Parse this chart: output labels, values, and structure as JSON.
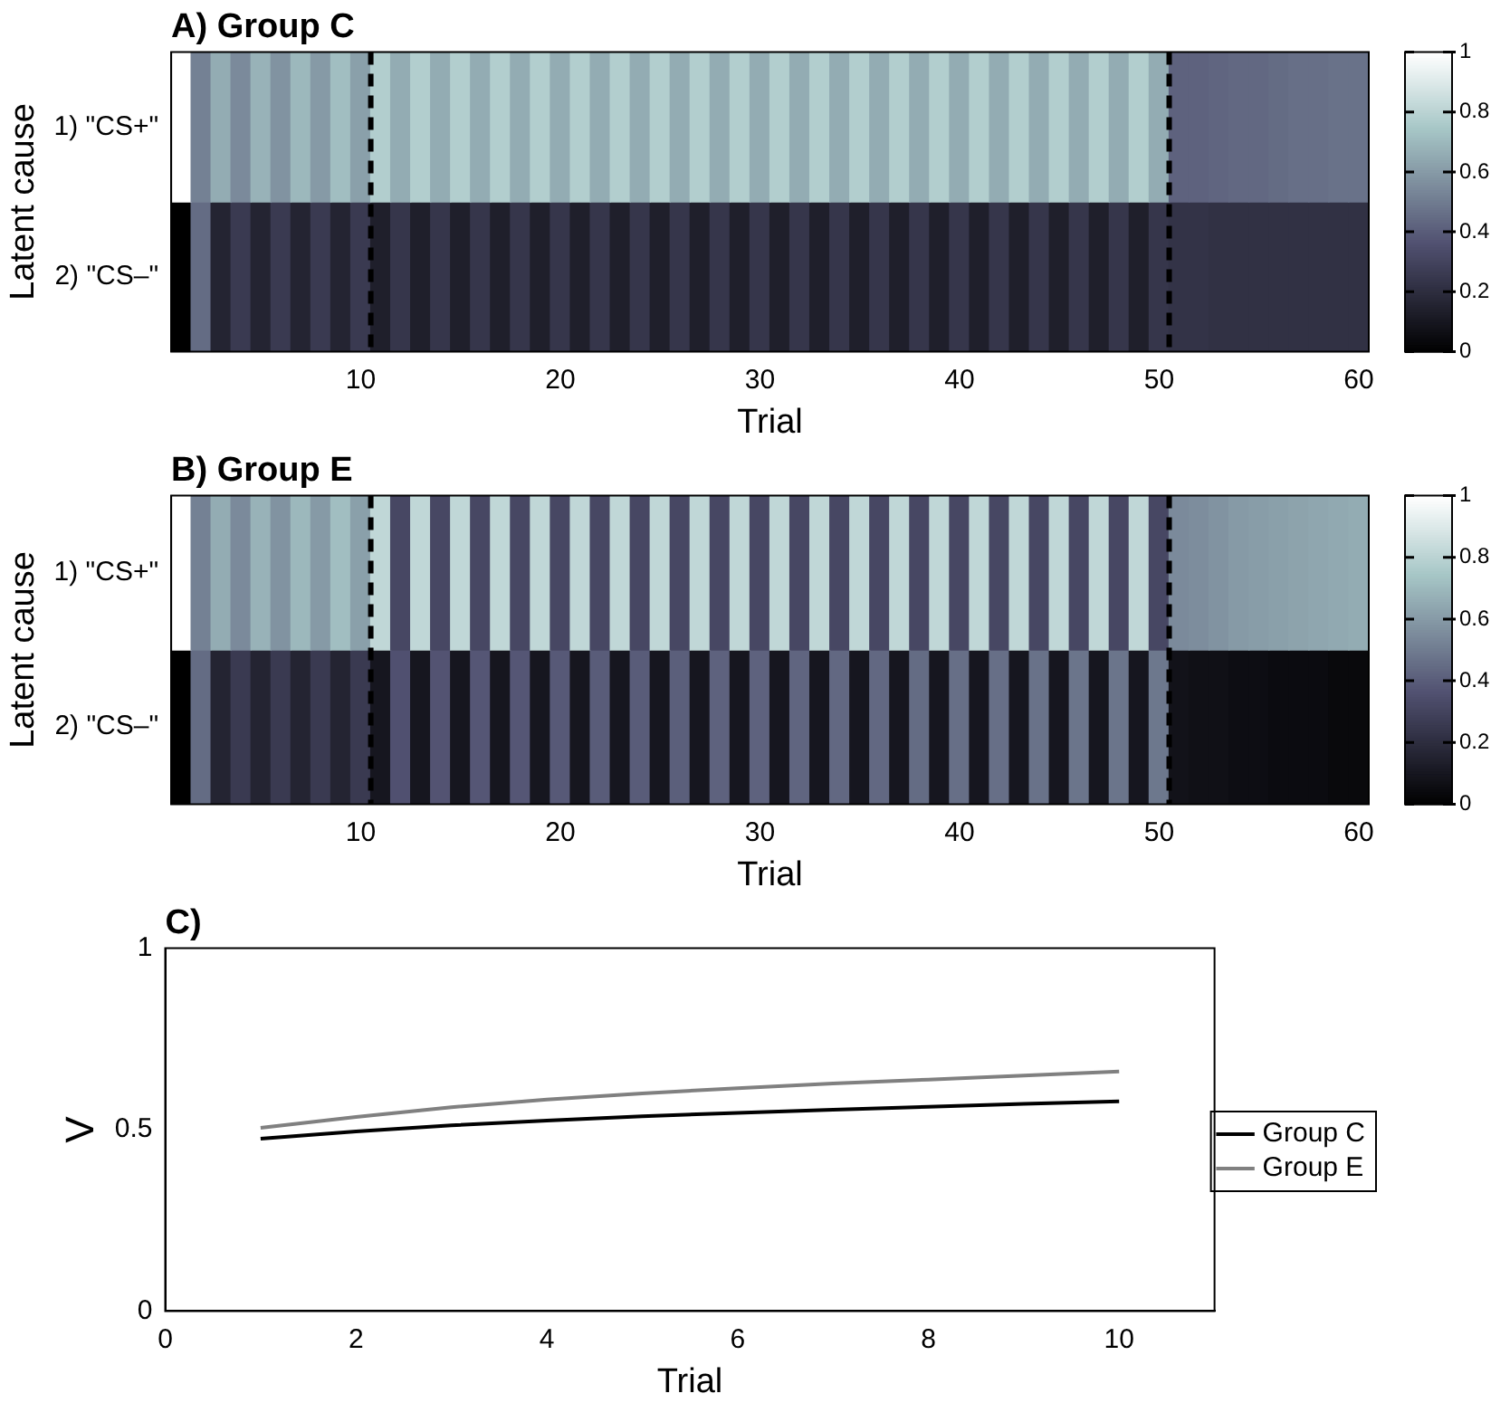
{
  "chart_data": [
    {
      "type": "heatmap",
      "title": "A) Group C",
      "xlabel": "Trial",
      "ylabel": "Latent cause",
      "x": [
        1,
        2,
        3,
        4,
        5,
        6,
        7,
        8,
        9,
        10,
        11,
        12,
        13,
        14,
        15,
        16,
        17,
        18,
        19,
        20,
        21,
        22,
        23,
        24,
        25,
        26,
        27,
        28,
        29,
        30,
        31,
        32,
        33,
        34,
        35,
        36,
        37,
        38,
        39,
        40,
        41,
        42,
        43,
        44,
        45,
        46,
        47,
        48,
        49,
        50,
        51,
        52,
        53,
        54,
        55,
        56,
        57,
        58,
        59,
        60
      ],
      "xlim": [
        0.5,
        60.5
      ],
      "xticks": [
        10,
        20,
        30,
        40,
        50,
        60
      ],
      "y_categories": [
        "1) \"CS+\"",
        "2) \"CS–\""
      ],
      "cells": [
        [
          1,
          0.52,
          0.66,
          0.55,
          0.68,
          0.58,
          0.7,
          0.6,
          0.72,
          0.62,
          0.78,
          0.66,
          0.78,
          0.66,
          0.78,
          0.66,
          0.78,
          0.66,
          0.78,
          0.66,
          0.78,
          0.66,
          0.78,
          0.66,
          0.78,
          0.66,
          0.78,
          0.66,
          0.78,
          0.66,
          0.78,
          0.66,
          0.78,
          0.66,
          0.78,
          0.66,
          0.78,
          0.66,
          0.78,
          0.66,
          0.78,
          0.66,
          0.78,
          0.66,
          0.78,
          0.66,
          0.78,
          0.66,
          0.78,
          0.66,
          0.42,
          0.42,
          0.43,
          0.44,
          0.44,
          0.45,
          0.46,
          0.46,
          0.47,
          0.47
        ],
        [
          0,
          0.45,
          0.16,
          0.26,
          0.16,
          0.26,
          0.16,
          0.26,
          0.16,
          0.26,
          0.14,
          0.24,
          0.14,
          0.24,
          0.14,
          0.24,
          0.14,
          0.24,
          0.14,
          0.24,
          0.14,
          0.24,
          0.14,
          0.24,
          0.14,
          0.24,
          0.14,
          0.24,
          0.14,
          0.24,
          0.14,
          0.24,
          0.14,
          0.24,
          0.14,
          0.24,
          0.14,
          0.24,
          0.14,
          0.24,
          0.14,
          0.24,
          0.14,
          0.24,
          0.14,
          0.24,
          0.14,
          0.24,
          0.14,
          0.24,
          0.23,
          0.23,
          0.22,
          0.22,
          0.22,
          0.22,
          0.22,
          0.22,
          0.22,
          0.22
        ]
      ],
      "clim": [
        0,
        1
      ],
      "cticks": [
        0,
        0.2,
        0.4,
        0.6,
        0.8,
        1
      ],
      "ref_lines": [
        {
          "axis": "x",
          "value": 10.5,
          "color": "#000000",
          "line_style": "dashed"
        },
        {
          "axis": "x",
          "value": 50.5,
          "color": "#000000",
          "line_style": "dashed"
        }
      ]
    },
    {
      "type": "heatmap",
      "title": "B) Group E",
      "xlabel": "Trial",
      "ylabel": "Latent cause",
      "x": [
        1,
        2,
        3,
        4,
        5,
        6,
        7,
        8,
        9,
        10,
        11,
        12,
        13,
        14,
        15,
        16,
        17,
        18,
        19,
        20,
        21,
        22,
        23,
        24,
        25,
        26,
        27,
        28,
        29,
        30,
        31,
        32,
        33,
        34,
        35,
        36,
        37,
        38,
        39,
        40,
        41,
        42,
        43,
        44,
        45,
        46,
        47,
        48,
        49,
        50,
        51,
        52,
        53,
        54,
        55,
        56,
        57,
        58,
        59,
        60
      ],
      "xlim": [
        0.5,
        60.5
      ],
      "xticks": [
        10,
        20,
        30,
        40,
        50,
        60
      ],
      "y_categories": [
        "1) \"CS+\"",
        "2) \"CS–\""
      ],
      "cells": [
        [
          1,
          0.52,
          0.66,
          0.55,
          0.68,
          0.58,
          0.7,
          0.6,
          0.72,
          0.62,
          0.82,
          0.32,
          0.82,
          0.32,
          0.82,
          0.32,
          0.82,
          0.32,
          0.82,
          0.32,
          0.82,
          0.32,
          0.82,
          0.32,
          0.82,
          0.32,
          0.82,
          0.32,
          0.82,
          0.32,
          0.82,
          0.32,
          0.82,
          0.32,
          0.82,
          0.32,
          0.82,
          0.32,
          0.82,
          0.32,
          0.82,
          0.32,
          0.82,
          0.32,
          0.82,
          0.32,
          0.82,
          0.32,
          0.82,
          0.32,
          0.55,
          0.56,
          0.58,
          0.6,
          0.61,
          0.62,
          0.63,
          0.64,
          0.65,
          0.66
        ],
        [
          0,
          0.45,
          0.16,
          0.26,
          0.16,
          0.26,
          0.16,
          0.26,
          0.16,
          0.26,
          0.1,
          0.36,
          0.1,
          0.37,
          0.1,
          0.38,
          0.1,
          0.38,
          0.1,
          0.39,
          0.1,
          0.4,
          0.1,
          0.4,
          0.1,
          0.41,
          0.1,
          0.42,
          0.1,
          0.42,
          0.1,
          0.43,
          0.1,
          0.44,
          0.1,
          0.44,
          0.1,
          0.45,
          0.1,
          0.46,
          0.1,
          0.46,
          0.1,
          0.47,
          0.1,
          0.48,
          0.1,
          0.48,
          0.1,
          0.49,
          0.08,
          0.07,
          0.07,
          0.06,
          0.06,
          0.05,
          0.05,
          0.05,
          0.04,
          0.04
        ]
      ],
      "clim": [
        0,
        1
      ],
      "cticks": [
        0,
        0.2,
        0.4,
        0.6,
        0.8,
        1
      ],
      "ref_lines": [
        {
          "axis": "x",
          "value": 10.5,
          "color": "#000000",
          "line_style": "dashed"
        },
        {
          "axis": "x",
          "value": 50.5,
          "color": "#000000",
          "line_style": "dashed"
        }
      ]
    },
    {
      "type": "line",
      "title": "C)",
      "xlabel": "Trial",
      "ylabel": "V",
      "x": [
        1,
        2,
        3,
        4,
        5,
        6,
        7,
        8,
        9,
        10
      ],
      "series": [
        {
          "name": "Group C",
          "color": "#000000",
          "values": [
            0.475,
            0.495,
            0.512,
            0.525,
            0.537,
            0.546,
            0.555,
            0.563,
            0.571,
            0.578
          ]
        },
        {
          "name": "Group E",
          "color": "#808080",
          "values": [
            0.505,
            0.535,
            0.562,
            0.583,
            0.6,
            0.614,
            0.627,
            0.638,
            0.649,
            0.66
          ]
        }
      ],
      "xlim": [
        0,
        11
      ],
      "xticks": [
        0,
        2,
        4,
        6,
        8,
        10
      ],
      "ylim": [
        0,
        1
      ],
      "yticks": [
        0,
        0.5,
        1
      ],
      "legend": "right",
      "grid": false,
      "marker": "none",
      "line_style": "solid"
    }
  ]
}
